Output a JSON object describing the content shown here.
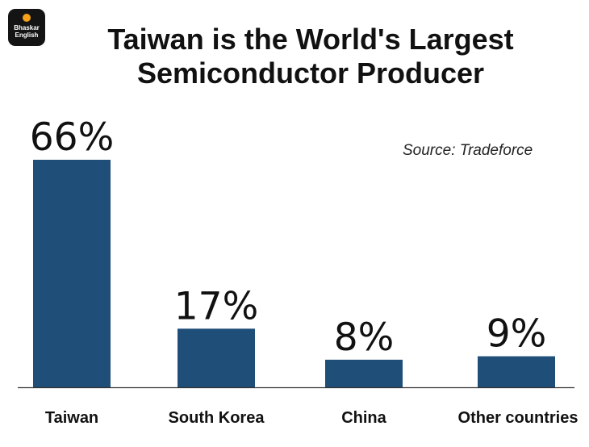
{
  "brand": {
    "line1": "Bhaskar",
    "line2": "English"
  },
  "source_text": "Source: Tradeforce",
  "colors": {
    "bar": "#1f4e79",
    "text": "#111111",
    "axis": "#333333",
    "logo_bg": "#141414",
    "logo_dot": "#f6a21a"
  },
  "chart_data": {
    "type": "bar",
    "title": "Taiwan is the World's Largest Semiconductor Producer",
    "categories": [
      "Taiwan",
      "South Korea",
      "China",
      "Other countries"
    ],
    "values": [
      66,
      17,
      8,
      9
    ],
    "labels": [
      "66%",
      "17%",
      "8%",
      "9%"
    ],
    "xlabel": "",
    "ylabel": "",
    "ylim": [
      0,
      70
    ],
    "grid": false,
    "legend": "none"
  }
}
